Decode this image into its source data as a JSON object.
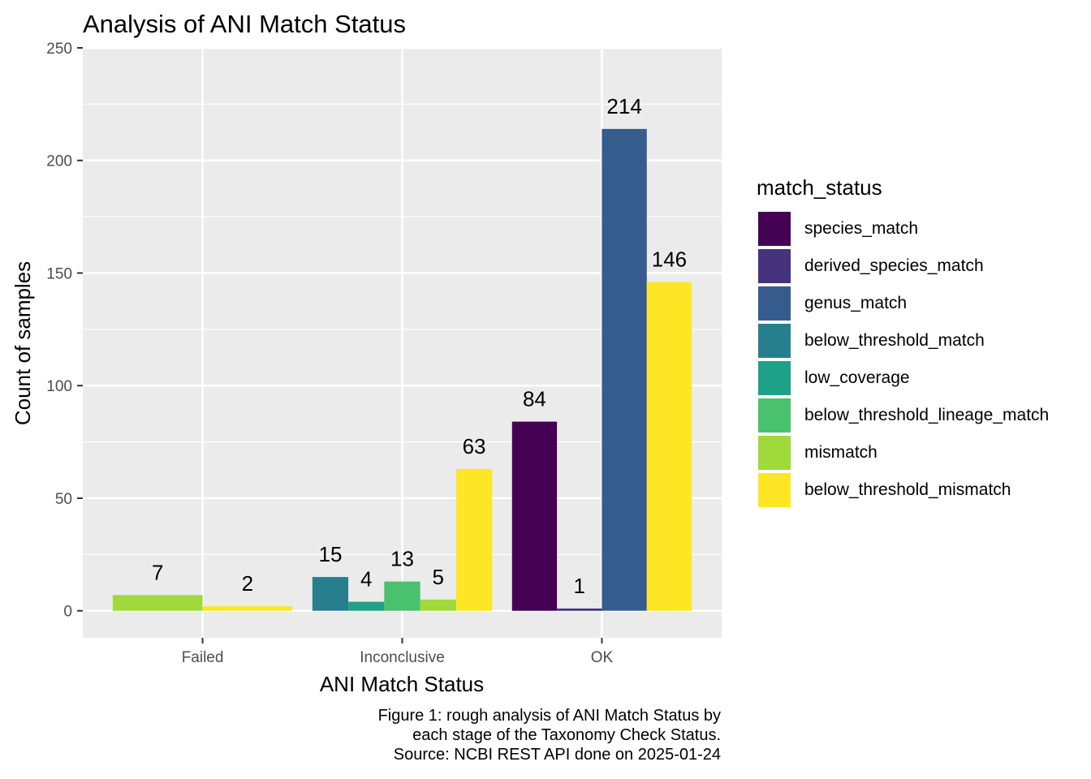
{
  "chart_data": {
    "type": "bar",
    "title": "Analysis of ANI Match Status",
    "xlabel": "ANI Match Status",
    "ylabel": "Count of samples",
    "ylim": [
      -12,
      250
    ],
    "yticks": [
      0,
      50,
      100,
      150,
      200,
      250
    ],
    "categories": [
      "Failed",
      "Inconclusive",
      "OK"
    ],
    "legend_title": "match_status",
    "legend_position": "right",
    "grid": true,
    "series": [
      {
        "name": "species_match",
        "color": "#440154",
        "values": [
          null,
          null,
          84
        ]
      },
      {
        "name": "derived_species_match",
        "color": "#46337E",
        "values": [
          null,
          null,
          1
        ]
      },
      {
        "name": "genus_match",
        "color": "#365C8D",
        "values": [
          null,
          null,
          214
        ]
      },
      {
        "name": "below_threshold_match",
        "color": "#277F8E",
        "values": [
          null,
          15,
          null
        ]
      },
      {
        "name": "low_coverage",
        "color": "#1FA187",
        "values": [
          null,
          4,
          null
        ]
      },
      {
        "name": "below_threshold_lineage_match",
        "color": "#4AC16D",
        "values": [
          null,
          13,
          null
        ]
      },
      {
        "name": "mismatch",
        "color": "#9FDA3A",
        "values": [
          7,
          5,
          null
        ]
      },
      {
        "name": "below_threshold_mismatch",
        "color": "#FDE725",
        "values": [
          2,
          63,
          146
        ]
      }
    ],
    "caption": [
      "Figure 1: rough analysis of ANI Match Status by",
      "each stage of the Taxonomy Check Status.",
      "Source: NCBI REST API done on 2025-01-24"
    ]
  }
}
